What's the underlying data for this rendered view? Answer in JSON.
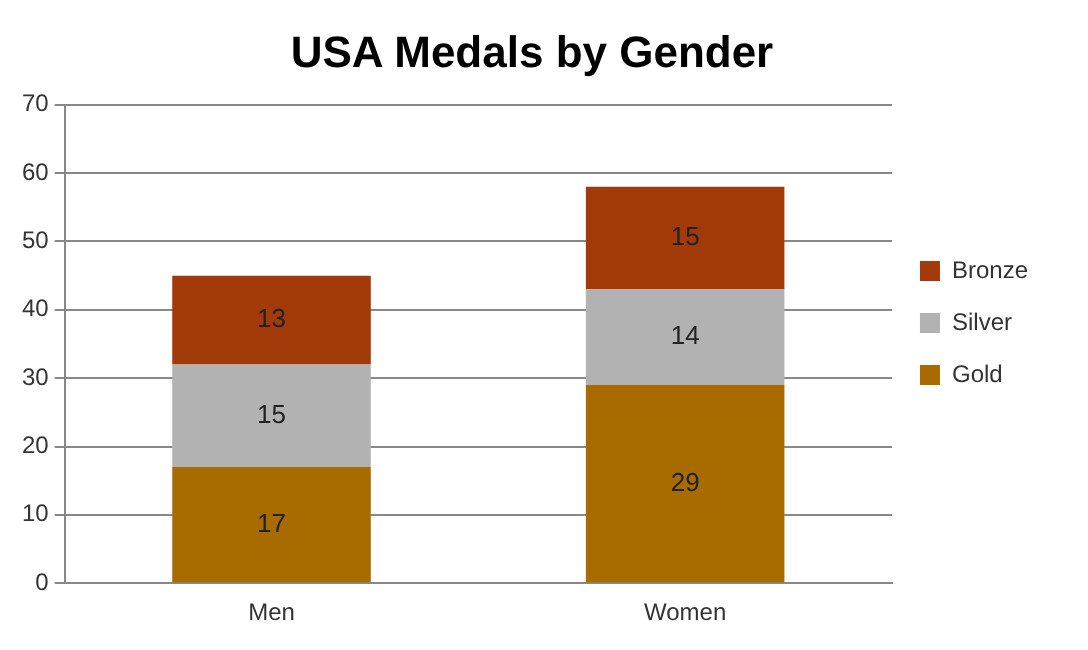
{
  "chart_data": {
    "type": "bar",
    "title": "USA Medals by Gender",
    "categories": [
      "Men",
      "Women"
    ],
    "stacked": true,
    "series": [
      {
        "name": "Gold",
        "color": "#a86b00",
        "values": [
          17,
          29
        ]
      },
      {
        "name": "Silver",
        "color": "#b2b2b2",
        "values": [
          15,
          14
        ]
      },
      {
        "name": "Bronze",
        "color": "#a23a0a",
        "values": [
          13,
          15
        ]
      }
    ],
    "ylim": [
      0,
      70
    ],
    "yticks": [
      0,
      10,
      20,
      30,
      40,
      50,
      60,
      70
    ],
    "grid": "y",
    "legend": "right",
    "data_labels": true
  }
}
